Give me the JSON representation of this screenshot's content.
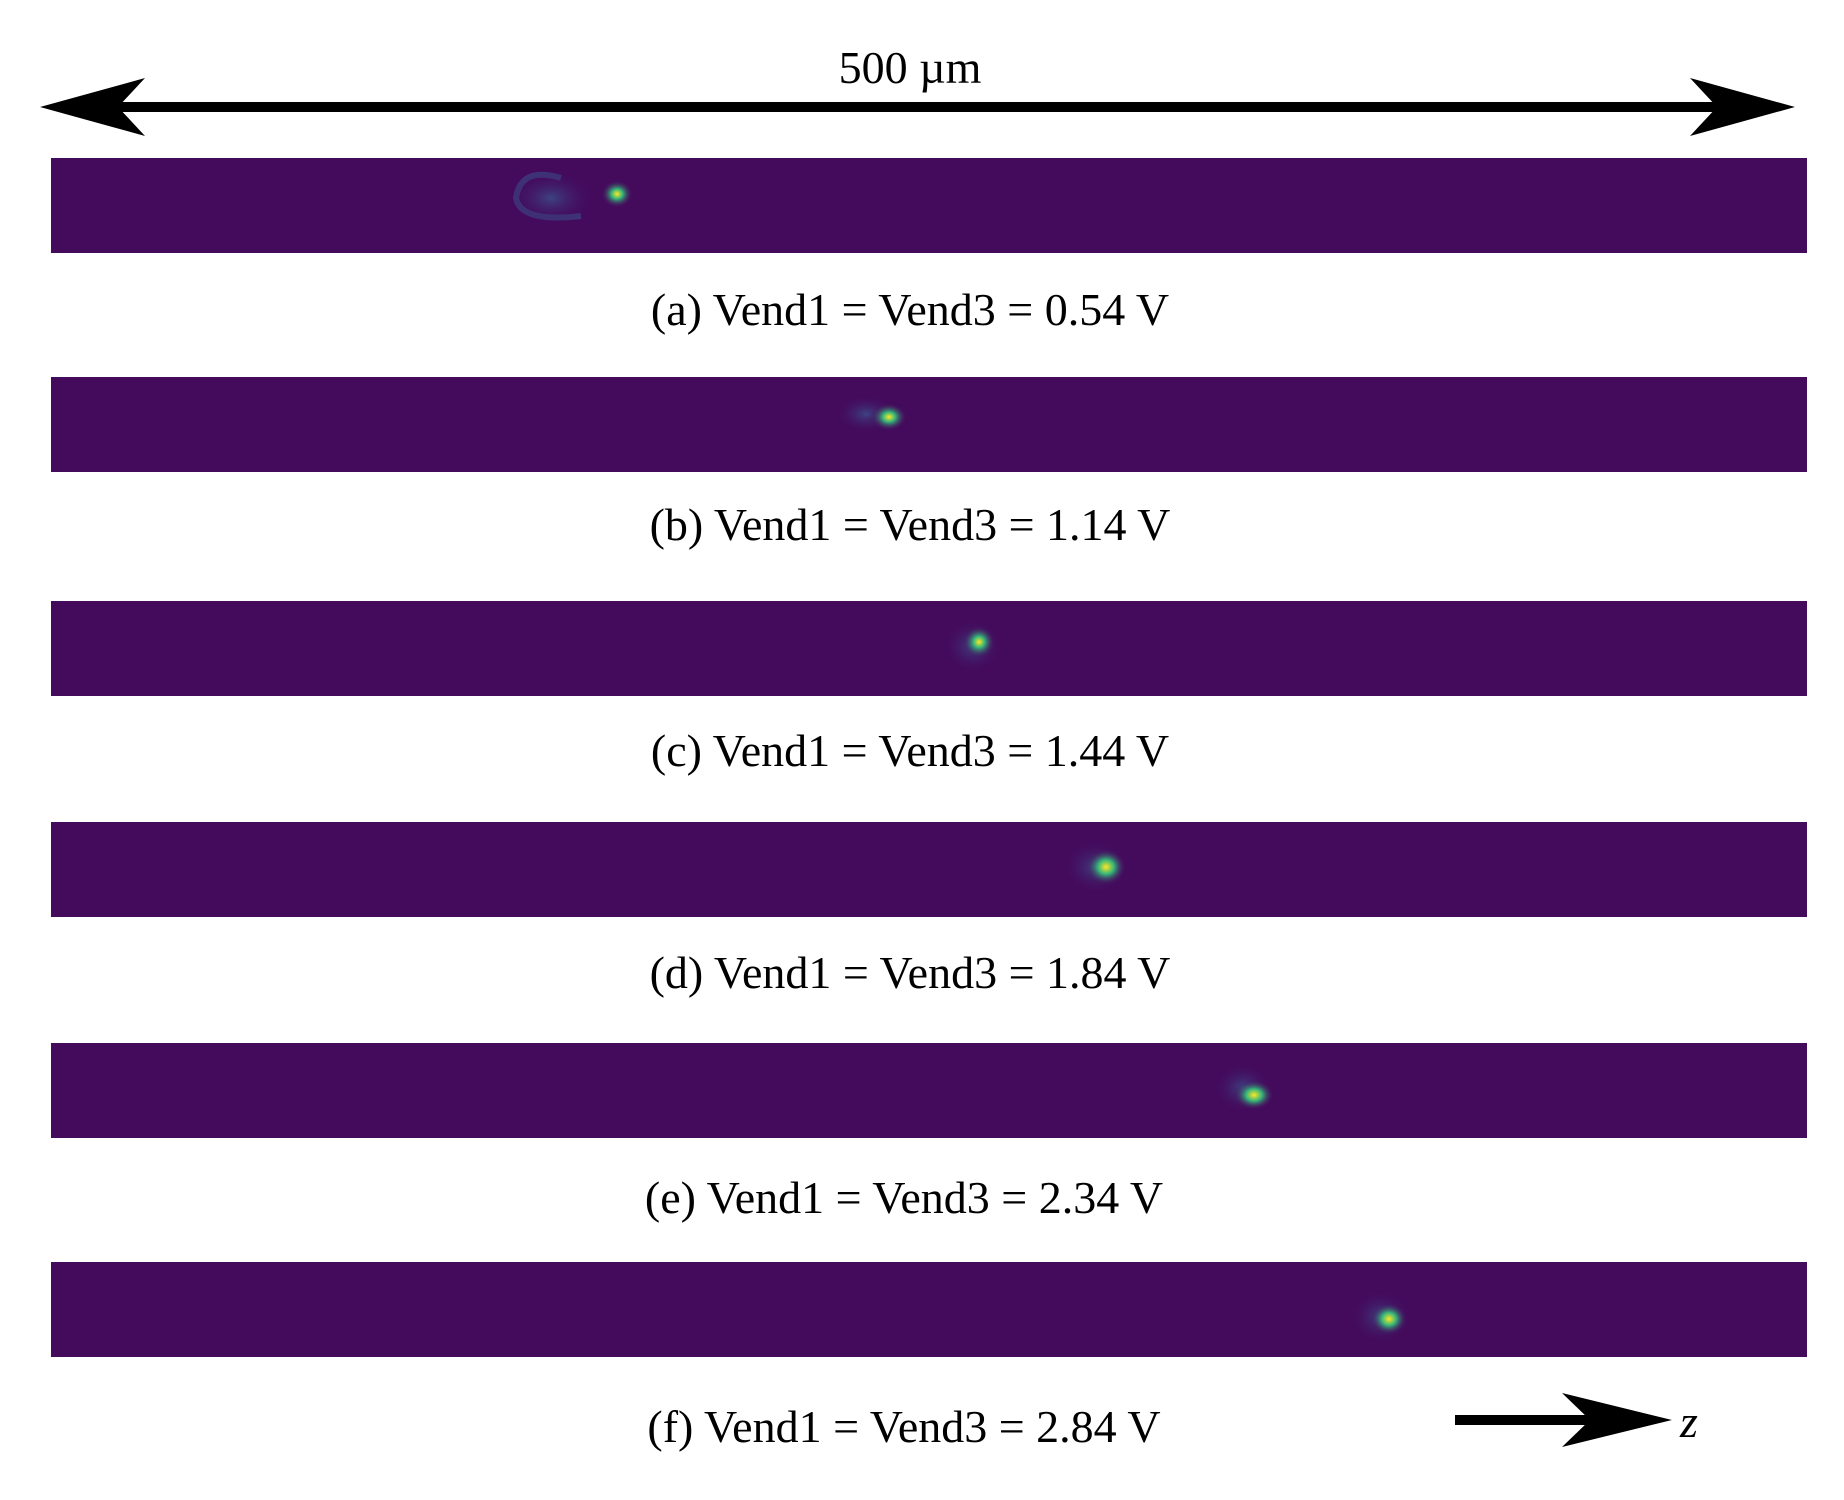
{
  "scale": {
    "label": "500 µm"
  },
  "panels": [
    {
      "caption": "(a) Vend1 = Vend3 = 0.54 V"
    },
    {
      "caption": "(b) Vend1 = Vend3 = 1.14 V"
    },
    {
      "caption": "(c) Vend1 = Vend3 = 1.44 V"
    },
    {
      "caption": "(d) Vend1 = Vend3 = 1.84 V"
    },
    {
      "caption": "(e) Vend1 = Vend3 = 2.34 V"
    },
    {
      "caption": "(f) Vend1 = Vend3 = 2.84 V"
    }
  ],
  "axis": {
    "label": "z"
  },
  "colors": {
    "background": "#440a5c",
    "spot_core": "#fde725",
    "spot_mid": "#35b779",
    "halo": "#3b528b"
  }
}
